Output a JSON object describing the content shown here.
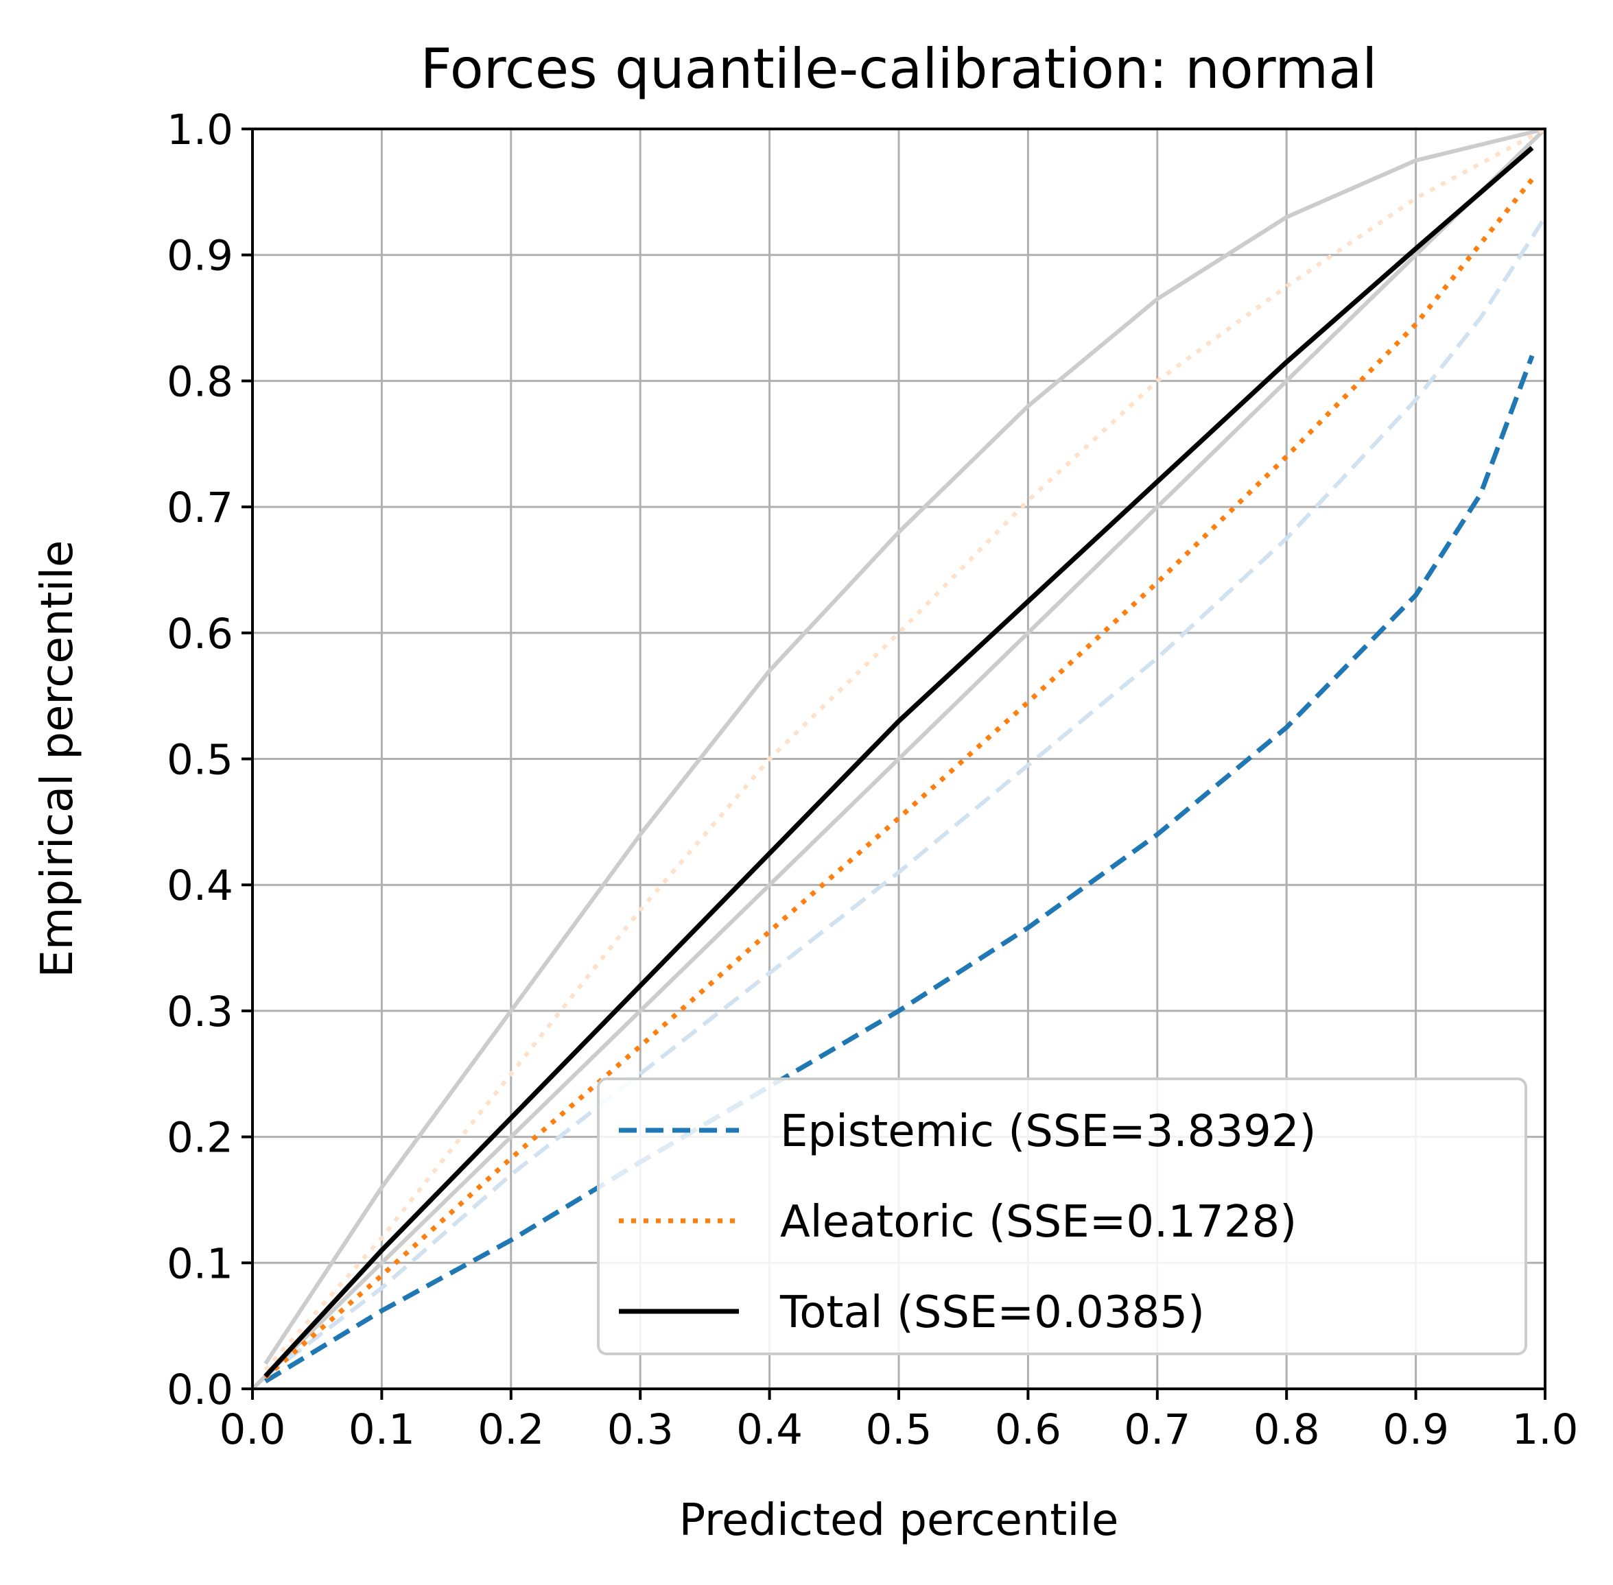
{
  "chart_data": {
    "type": "line",
    "title": "Forces quantile-calibration: normal",
    "xlabel": "Predicted percentile",
    "ylabel": "Empirical percentile",
    "xlim": [
      0,
      1
    ],
    "ylim": [
      0,
      1
    ],
    "xticks": [
      "0.0",
      "0.1",
      "0.2",
      "0.3",
      "0.4",
      "0.5",
      "0.6",
      "0.7",
      "0.8",
      "0.9",
      "1.0"
    ],
    "yticks": [
      "0.0",
      "0.1",
      "0.2",
      "0.3",
      "0.4",
      "0.5",
      "0.6",
      "0.7",
      "0.8",
      "0.9",
      "1.0"
    ],
    "grid": true,
    "legend_position": "lower-right",
    "series": [
      {
        "name": "Epistemic (SSE=3.8392)",
        "color": "#1f77b4",
        "style": "dashed",
        "x": [
          0.01,
          0.1,
          0.2,
          0.3,
          0.4,
          0.5,
          0.6,
          0.7,
          0.8,
          0.9,
          0.95,
          0.99
        ],
        "y": [
          0.006,
          0.062,
          0.118,
          0.18,
          0.24,
          0.3,
          0.366,
          0.44,
          0.525,
          0.63,
          0.71,
          0.82
        ]
      },
      {
        "name": "Aleatoric (SSE=0.1728)",
        "color": "#ff7f0e",
        "style": "dotted",
        "x": [
          0.01,
          0.1,
          0.2,
          0.3,
          0.4,
          0.5,
          0.6,
          0.7,
          0.8,
          0.9,
          0.99
        ],
        "y": [
          0.009,
          0.09,
          0.183,
          0.272,
          0.363,
          0.453,
          0.545,
          0.64,
          0.74,
          0.845,
          0.96
        ]
      },
      {
        "name": "Total (SSE=0.0385)",
        "color": "#000000",
        "style": "solid",
        "x": [
          0.01,
          0.1,
          0.2,
          0.3,
          0.4,
          0.5,
          0.6,
          0.7,
          0.8,
          0.9,
          0.99
        ],
        "y": [
          0.01,
          0.11,
          0.215,
          0.32,
          0.425,
          0.53,
          0.625,
          0.72,
          0.815,
          0.905,
          0.985
        ]
      }
    ],
    "reference_lines": [
      {
        "color": "#cccccc",
        "style": "solid",
        "x": [
          0,
          1
        ],
        "y": [
          0,
          1
        ]
      },
      {
        "color": "#cccccc",
        "style": "solid",
        "x": [
          0.01,
          0.1,
          0.2,
          0.3,
          0.4,
          0.5,
          0.6,
          0.7,
          0.8,
          0.9,
          1.0
        ],
        "y": [
          0.02,
          0.16,
          0.3,
          0.44,
          0.57,
          0.68,
          0.78,
          0.865,
          0.93,
          0.975,
          1.0
        ]
      },
      {
        "color": "#ffe0c8",
        "style": "dotted",
        "x": [
          0.01,
          0.1,
          0.2,
          0.3,
          0.4,
          0.5,
          0.6,
          0.7,
          0.8,
          0.9,
          1.0
        ],
        "y": [
          0.015,
          0.12,
          0.25,
          0.38,
          0.5,
          0.6,
          0.705,
          0.8,
          0.875,
          0.945,
          1.0
        ]
      },
      {
        "color": "#d0e2f0",
        "style": "dashed",
        "x": [
          0.01,
          0.1,
          0.2,
          0.3,
          0.4,
          0.5,
          0.6,
          0.7,
          0.8,
          0.9,
          0.95,
          1.0
        ],
        "y": [
          0.01,
          0.08,
          0.17,
          0.25,
          0.33,
          0.41,
          0.495,
          0.58,
          0.675,
          0.785,
          0.85,
          0.93
        ]
      }
    ]
  }
}
